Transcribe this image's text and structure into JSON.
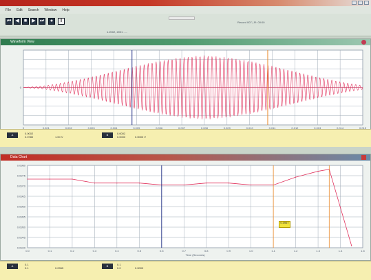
{
  "window": {
    "menu": [
      "File",
      "Edit",
      "Search",
      "Window",
      "Help"
    ]
  },
  "toolbar": {
    "buttons": [
      {
        "name": "skip-back-button",
        "glyph": "⏮"
      },
      {
        "name": "step-back-button",
        "glyph": "◀"
      },
      {
        "name": "stop-button",
        "glyph": "■"
      },
      {
        "name": "play-button",
        "glyph": "▶"
      },
      {
        "name": "step-forward-button",
        "glyph": "⏭"
      },
      {
        "name": "record-button",
        "glyph": "●"
      },
      {
        "name": "pause-button",
        "glyph": "‖"
      }
    ],
    "status_left": "1.2002, 2001 .....",
    "status_right": "Record 007 | Fi: 00:00"
  },
  "top_panel": {
    "title": "Waveform View",
    "y_ticks": [
      "",
      "",
      "",
      "",
      "0",
      "",
      "",
      "",
      ""
    ],
    "x_ticks": [
      "0",
      "0.001",
      "0.002",
      "0.003",
      "0.004",
      "0.005",
      "0.006",
      "0.007",
      "0.008",
      "0.009",
      "0.010",
      "0.011",
      "0.012",
      "0.013",
      "0.014",
      "0.015"
    ],
    "x_axis_title": "Time (Seconds)",
    "cursor_a_label": "A",
    "cursor_b_label": "B"
  },
  "top_readout": {
    "cursor1": {
      "line1": "0.0002",
      "line2": "0.0780"
    },
    "cursor1_value": "1.00 V",
    "cursor2": {
      "line1": "0.0002",
      "line2": "0.0000"
    },
    "cursor2_value": "0.0000 V"
  },
  "bottom_panel": {
    "title": "Data Chart",
    "y_ticks": [
      "0.0980",
      "0.0975",
      "0.0970",
      "0.0965",
      "0.0960",
      "0.0955",
      "0.0950",
      "0.0945",
      "0.0940"
    ],
    "x_ticks": [
      "0.0",
      "0.1",
      "0.2",
      "0.3",
      "0.4",
      "0.5",
      "0.6",
      "0.7",
      "0.8",
      "0.9",
      "1.0",
      "1.1",
      "1.2",
      "1.3",
      "1.4",
      "1.5"
    ],
    "x_axis_title": "Time (Seconds)",
    "marker_text": "0.0957"
  },
  "bottom_readout": {
    "cursor1": {
      "line1": "0.1",
      "line2": "0.1"
    },
    "cursor1_value": "0.0965",
    "cursor2": {
      "line1": "0.1",
      "line2": "0.0"
    },
    "cursor2_value": "0.0000"
  },
  "colors": {
    "signal": "#e0325c",
    "grid": "#9ea9b6",
    "cursor_blue": "#2d3a8c",
    "cursor_orange": "#e98a2b",
    "readout": "#f6efb0"
  },
  "chart_data": [
    {
      "type": "line",
      "description_series": "amplitude-modulated sine burst",
      "x": [
        0,
        0.001,
        0.002,
        0.003,
        0.004,
        0.005,
        0.006,
        0.007,
        0.008,
        0.009,
        0.01,
        0.011,
        0.012,
        0.013,
        0.014,
        0.015
      ],
      "envelope": [
        0,
        0.05,
        0.15,
        0.28,
        0.43,
        0.58,
        0.71,
        0.81,
        0.86,
        0.81,
        0.71,
        0.58,
        0.43,
        0.28,
        0.15,
        0.05
      ],
      "xlim": [
        0,
        0.015
      ],
      "ylim": [
        -1,
        1
      ],
      "grid": true
    },
    {
      "type": "line",
      "x": [
        0.0,
        0.1,
        0.2,
        0.3,
        0.4,
        0.5,
        0.6,
        0.7,
        0.8,
        0.9,
        1.0,
        1.1,
        1.2,
        1.3,
        1.35,
        1.45
      ],
      "y": [
        0.0975,
        0.0975,
        0.0975,
        0.0973,
        0.0973,
        0.0973,
        0.0972,
        0.0972,
        0.0973,
        0.0973,
        0.0972,
        0.0972,
        0.0976,
        0.0979,
        0.098,
        0.0941
      ],
      "xlim": [
        0.0,
        1.5
      ],
      "ylim": [
        0.094,
        0.0982
      ],
      "grid": true
    }
  ]
}
